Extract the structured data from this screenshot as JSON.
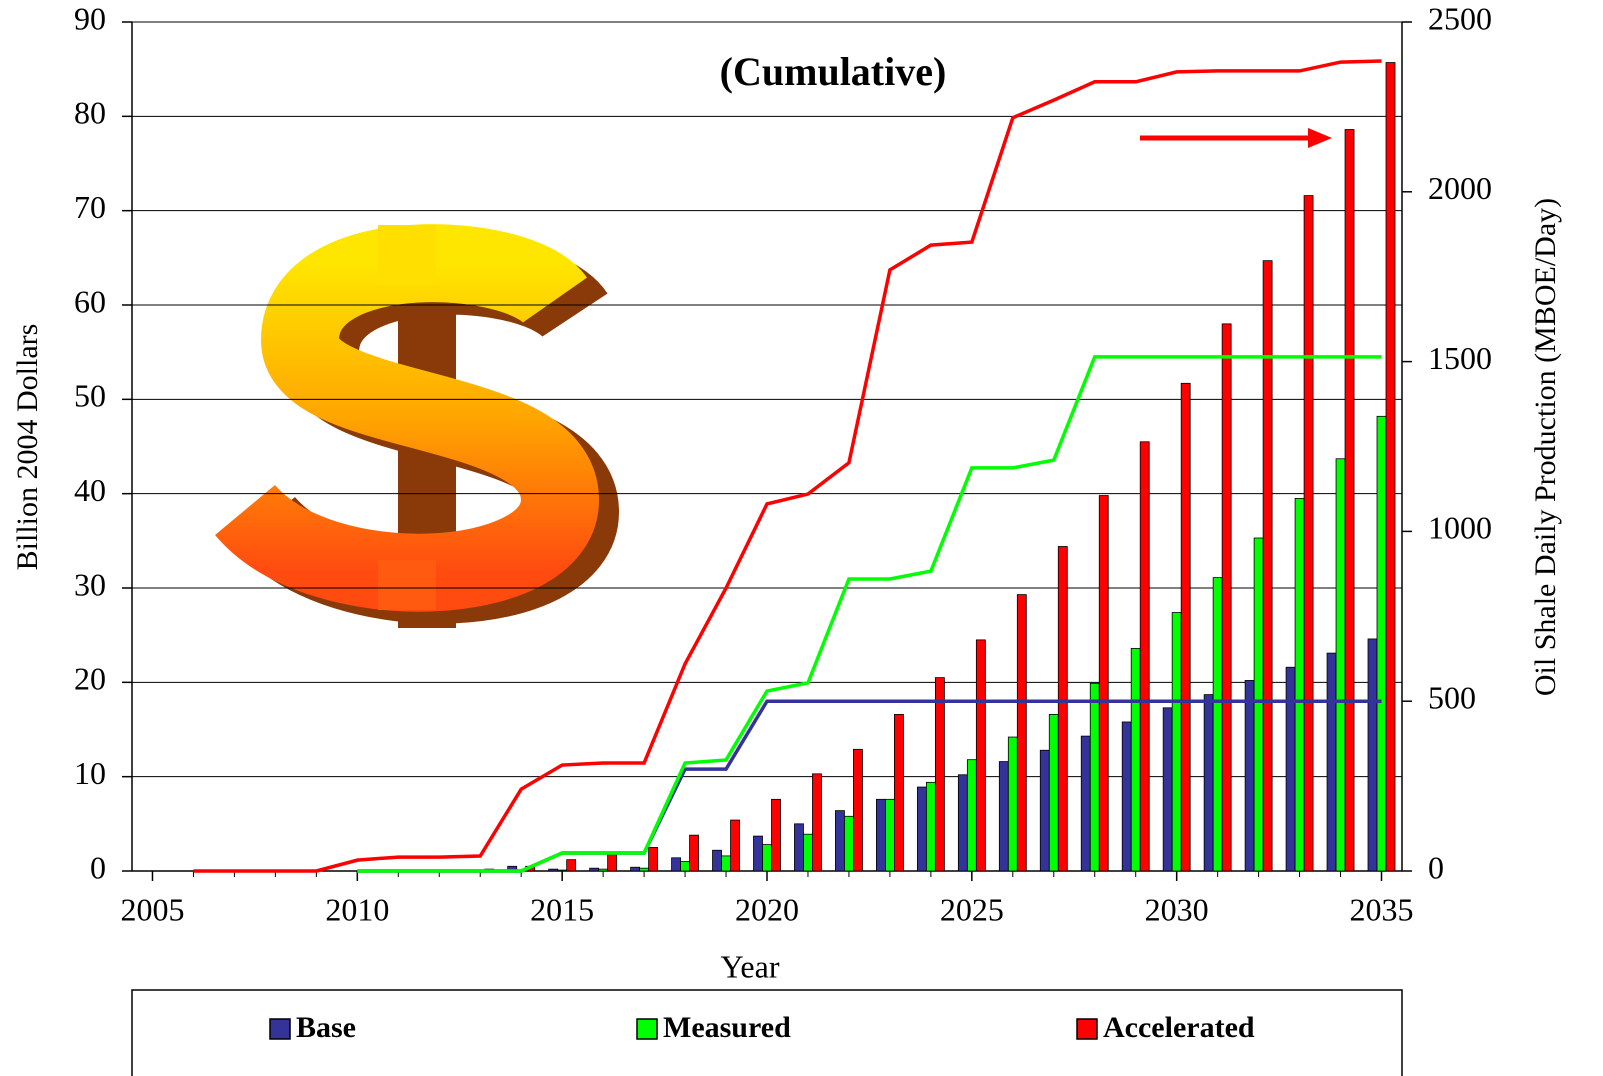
{
  "chart_data": {
    "type": "bar-line",
    "title": "(Cumulative)",
    "x_label": "Year",
    "y_label": "Billion 2004 Dollars",
    "y2_label": "Oil Shale Daily Production (MBOE/Day)",
    "x": [
      2006,
      2007,
      2008,
      2009,
      2010,
      2011,
      2012,
      2013,
      2014,
      2015,
      2016,
      2017,
      2018,
      2019,
      2020,
      2021,
      2022,
      2023,
      2024,
      2025,
      2026,
      2027,
      2028,
      2029,
      2030,
      2031,
      2032,
      2033,
      2034,
      2035
    ],
    "xlim": [
      2004.5,
      2035.5
    ],
    "xticks": [
      2005,
      2010,
      2015,
      2020,
      2025,
      2030,
      2035
    ],
    "ylim": [
      0,
      90
    ],
    "yticks": [
      0,
      10,
      20,
      30,
      40,
      50,
      60,
      70,
      80,
      90
    ],
    "y2lim": [
      0,
      2500
    ],
    "y2ticks": [
      0,
      500,
      1000,
      1500,
      2000,
      2500
    ],
    "grid": true,
    "legend": "bottom",
    "series": [
      {
        "name": "Base",
        "color": "#333399",
        "values": [
          0,
          0,
          0,
          0,
          0,
          0,
          0,
          0,
          0.5,
          0.2,
          0.3,
          0.4,
          1.4,
          2.2,
          3.7,
          5.0,
          6.4,
          7.6,
          8.9,
          10.2,
          11.6,
          12.8,
          14.3,
          15.8,
          17.3,
          18.7,
          20.2,
          21.6,
          23.1,
          24.6
        ],
        "y2_values": [
          null,
          null,
          null,
          null,
          0,
          0,
          0,
          0,
          0,
          53,
          53,
          53,
          300,
          300,
          500,
          500,
          500,
          500,
          500,
          500,
          500,
          500,
          500,
          500,
          500,
          500,
          500,
          500,
          500,
          500
        ]
      },
      {
        "name": "Measured",
        "color": "#00ff00",
        "values": [
          0,
          0,
          0,
          0,
          0,
          0,
          0,
          0,
          0.1,
          0.1,
          0.2,
          0.3,
          1.0,
          1.6,
          2.8,
          3.9,
          5.8,
          7.6,
          9.4,
          11.8,
          14.2,
          16.6,
          19.9,
          23.6,
          27.4,
          31.1,
          35.3,
          39.5,
          43.7,
          48.2
        ],
        "y2_values": [
          null,
          null,
          null,
          null,
          0,
          0,
          0,
          0,
          0,
          53,
          53,
          53,
          318,
          327,
          530,
          554,
          860,
          860,
          883,
          1187,
          1187,
          1210,
          1514,
          1514,
          1514,
          1514,
          1514,
          1514,
          1514,
          1514
        ]
      },
      {
        "name": "Accelerated",
        "color": "#ff0000",
        "values": [
          0,
          0,
          0,
          0,
          0.1,
          0.1,
          0.1,
          0.2,
          0.5,
          1.2,
          1.9,
          2.5,
          3.8,
          5.4,
          7.6,
          10.3,
          12.9,
          16.6,
          20.5,
          24.5,
          29.3,
          34.4,
          39.8,
          45.5,
          51.7,
          58.0,
          64.7,
          71.6,
          78.6,
          85.7
        ],
        "y2_values": [
          0,
          0,
          0,
          0,
          32,
          41,
          41,
          44,
          241,
          312,
          318,
          318,
          610,
          833,
          1081,
          1110,
          1202,
          1770,
          1843,
          1852,
          2218,
          2270,
          2324,
          2324,
          2353,
          2356,
          2356,
          2356,
          2382,
          2385
        ]
      }
    ]
  }
}
